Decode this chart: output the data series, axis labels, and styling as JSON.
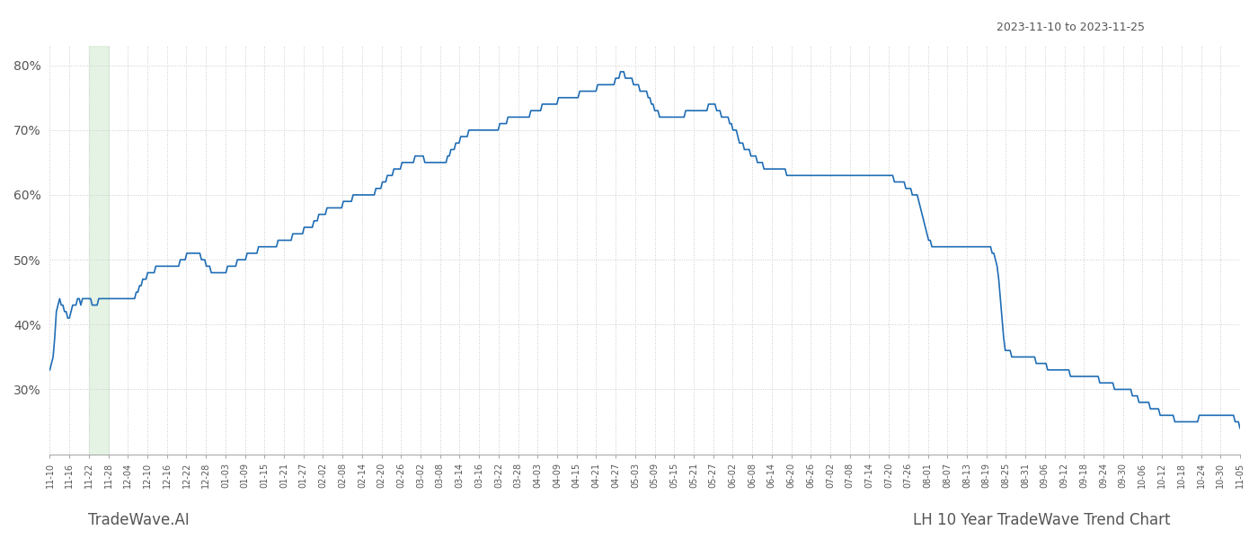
{
  "title_date": "2023-11-10 to 2023-11-25",
  "footer_left": "TradeWave.AI",
  "footer_right": "LH 10 Year TradeWave Trend Chart",
  "line_color": "#1f6db5",
  "background_color": "#ffffff",
  "grid_color": "#cccccc",
  "highlight_color": "#d4ecd2",
  "highlight_alpha": 0.6,
  "ylim": [
    20,
    83
  ],
  "yticks": [
    30,
    40,
    50,
    60,
    70,
    80
  ],
  "x_labels": [
    "11-10",
    "11-16",
    "11-22",
    "11-28",
    "12-04",
    "12-10",
    "12-16",
    "12-22",
    "12-28",
    "01-03",
    "01-09",
    "01-15",
    "01-21",
    "01-27",
    "02-02",
    "02-08",
    "02-14",
    "02-20",
    "02-26",
    "03-02",
    "03-08",
    "03-14",
    "03-16",
    "03-22",
    "03-28",
    "04-03",
    "04-09",
    "04-15",
    "04-21",
    "04-27",
    "05-03",
    "05-09",
    "05-15",
    "05-21",
    "05-27",
    "06-02",
    "06-08",
    "06-14",
    "06-20",
    "06-26",
    "07-02",
    "07-08",
    "07-14",
    "07-20",
    "07-26",
    "08-01",
    "08-07",
    "08-13",
    "08-19",
    "08-25",
    "08-31",
    "09-06",
    "09-12",
    "09-18",
    "09-24",
    "09-30",
    "10-06",
    "10-12",
    "10-18",
    "10-24",
    "10-30",
    "11-05"
  ],
  "highlight_start_label": "11-22",
  "highlight_end_label": "11-28",
  "y_values": [
    33,
    34,
    35,
    38,
    42,
    43,
    44,
    43,
    43,
    42,
    42,
    41,
    41,
    42,
    43,
    43,
    43,
    44,
    44,
    43,
    44,
    44,
    44,
    44,
    44,
    44,
    43,
    43,
    43,
    43,
    44,
    44,
    44,
    44,
    44,
    44,
    44,
    44,
    44,
    44,
    44,
    44,
    44,
    44,
    44,
    44,
    44,
    44,
    44,
    44,
    44,
    44,
    44,
    45,
    45,
    46,
    46,
    47,
    47,
    47,
    48,
    48,
    48,
    48,
    48,
    49,
    49,
    49,
    49,
    49,
    49,
    49,
    49,
    49,
    49,
    49,
    49,
    49,
    49,
    49,
    50,
    50,
    50,
    50,
    51,
    51,
    51,
    51,
    51,
    51,
    51,
    51,
    51,
    50,
    50,
    50,
    49,
    49,
    49,
    48,
    48,
    48,
    48,
    48,
    48,
    48,
    48,
    48,
    48,
    49,
    49,
    49,
    49,
    49,
    49,
    50,
    50,
    50,
    50,
    50,
    50,
    51,
    51,
    51,
    51,
    51,
    51,
    51,
    52,
    52,
    52,
    52,
    52,
    52,
    52,
    52,
    52,
    52,
    52,
    52,
    53,
    53,
    53,
    53,
    53,
    53,
    53,
    53,
    53,
    54,
    54,
    54,
    54,
    54,
    54,
    54,
    55,
    55,
    55,
    55,
    55,
    55,
    56,
    56,
    56,
    57,
    57,
    57,
    57,
    57,
    58,
    58,
    58,
    58,
    58,
    58,
    58,
    58,
    58,
    58,
    59,
    59,
    59,
    59,
    59,
    59,
    60,
    60,
    60,
    60,
    60,
    60,
    60,
    60,
    60,
    60,
    60,
    60,
    60,
    60,
    61,
    61,
    61,
    61,
    62,
    62,
    62,
    63,
    63,
    63,
    63,
    64,
    64,
    64,
    64,
    64,
    65,
    65,
    65,
    65,
    65,
    65,
    65,
    65,
    66,
    66,
    66,
    66,
    66,
    66,
    65,
    65,
    65,
    65,
    65,
    65,
    65,
    65,
    65,
    65,
    65,
    65,
    65,
    65,
    66,
    66,
    67,
    67,
    67,
    68,
    68,
    68,
    69,
    69,
    69,
    69,
    69,
    70,
    70,
    70,
    70,
    70,
    70,
    70,
    70,
    70,
    70,
    70,
    70,
    70,
    70,
    70,
    70,
    70,
    70,
    70,
    71,
    71,
    71,
    71,
    71,
    72,
    72,
    72,
    72,
    72,
    72,
    72,
    72,
    72,
    72,
    72,
    72,
    72,
    72,
    73,
    73,
    73,
    73,
    73,
    73,
    73,
    74,
    74,
    74,
    74,
    74,
    74,
    74,
    74,
    74,
    74,
    75,
    75,
    75,
    75,
    75,
    75,
    75,
    75,
    75,
    75,
    75,
    75,
    75,
    76,
    76,
    76,
    76,
    76,
    76,
    76,
    76,
    76,
    76,
    76,
    77,
    77,
    77,
    77,
    77,
    77,
    77,
    77,
    77,
    77,
    77,
    78,
    78,
    78,
    79,
    79,
    79,
    78,
    78,
    78,
    78,
    78,
    77,
    77,
    77,
    77,
    76,
    76,
    76,
    76,
    76,
    75,
    75,
    74,
    74,
    73,
    73,
    73,
    72,
    72,
    72,
    72,
    72,
    72,
    72,
    72,
    72,
    72,
    72,
    72,
    72,
    72,
    72,
    72,
    73,
    73,
    73,
    73,
    73,
    73,
    73,
    73,
    73,
    73,
    73,
    73,
    73,
    73,
    74,
    74,
    74,
    74,
    74,
    73,
    73,
    73,
    72,
    72,
    72,
    72,
    72,
    71,
    71,
    70,
    70,
    70,
    69,
    68,
    68,
    68,
    67,
    67,
    67,
    67,
    66,
    66,
    66,
    66,
    65,
    65,
    65,
    65,
    64,
    64,
    64,
    64,
    64,
    64,
    64,
    64,
    64,
    64,
    64,
    64,
    64,
    64,
    63,
    63,
    63,
    63,
    63,
    63,
    63,
    63,
    63,
    63,
    63,
    63,
    63,
    63,
    63,
    63,
    63,
    63,
    63,
    63,
    63,
    63,
    63,
    63,
    63,
    63,
    63,
    63,
    63,
    63,
    63,
    63,
    63,
    63,
    63,
    63,
    63,
    63,
    63,
    63,
    63,
    63,
    63,
    63,
    63,
    63,
    63,
    63,
    63,
    63,
    63,
    63,
    63,
    63,
    63,
    63,
    63,
    63,
    63,
    63,
    63,
    63,
    63,
    63,
    63,
    63,
    62,
    62,
    62,
    62,
    62,
    62,
    62,
    61,
    61,
    61,
    61,
    60,
    60,
    60,
    60,
    59,
    58,
    57,
    56,
    55,
    54,
    53,
    53,
    52,
    52,
    52,
    52,
    52,
    52,
    52,
    52,
    52,
    52,
    52,
    52,
    52,
    52,
    52,
    52,
    52,
    52,
    52,
    52,
    52,
    52,
    52,
    52,
    52,
    52,
    52,
    52,
    52,
    52,
    52,
    52,
    52,
    52,
    52,
    52,
    52,
    51,
    51,
    50,
    49,
    47,
    44,
    41,
    38,
    36,
    36,
    36,
    36,
    35,
    35,
    35,
    35,
    35,
    35,
    35,
    35,
    35,
    35,
    35,
    35,
    35,
    35,
    35,
    34,
    34,
    34,
    34,
    34,
    34,
    34,
    33,
    33,
    33,
    33,
    33,
    33,
    33,
    33,
    33,
    33,
    33,
    33,
    33,
    33,
    32,
    32,
    32,
    32,
    32,
    32,
    32,
    32,
    32,
    32,
    32,
    32,
    32,
    32,
    32,
    32,
    32,
    32,
    31,
    31,
    31,
    31,
    31,
    31,
    31,
    31,
    31,
    30,
    30,
    30,
    30,
    30,
    30,
    30,
    30,
    30,
    30,
    30,
    29,
    29,
    29,
    29,
    28,
    28,
    28,
    28,
    28,
    28,
    28,
    27,
    27,
    27,
    27,
    27,
    27,
    26,
    26,
    26,
    26,
    26,
    26,
    26,
    26,
    26,
    25,
    25,
    25,
    25,
    25,
    25,
    25,
    25,
    25,
    25,
    25,
    25,
    25,
    25,
    25,
    26,
    26,
    26,
    26,
    26,
    26,
    26,
    26,
    26,
    26,
    26,
    26,
    26,
    26,
    26,
    26,
    26,
    26,
    26,
    26,
    26,
    26,
    25,
    25,
    25,
    24
  ]
}
